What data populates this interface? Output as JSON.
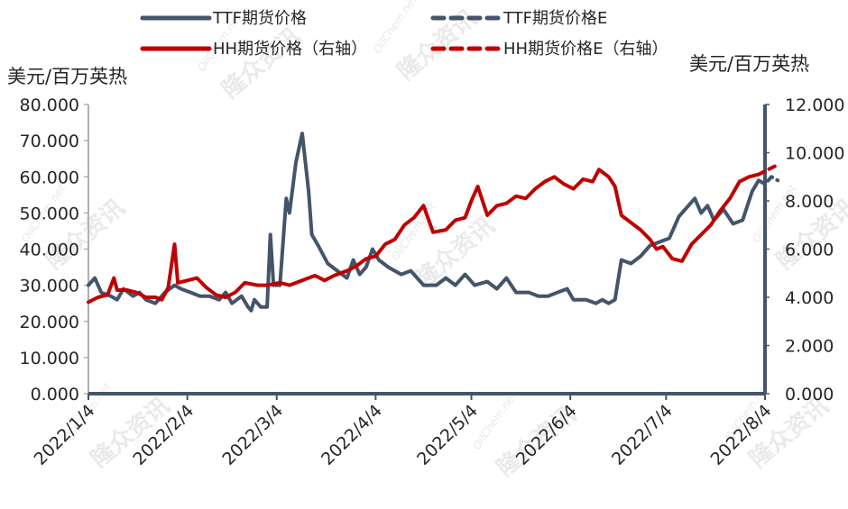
{
  "chart_data": {
    "type": "line",
    "y_left_unit": "美元/百万英热",
    "y_right_unit": "美元/百万英热",
    "ylim_left": [
      0,
      80
    ],
    "ylim_right": [
      0,
      12
    ],
    "yticks_left": [
      "0.000",
      "10.000",
      "20.000",
      "30.000",
      "40.000",
      "50.000",
      "60.000",
      "70.000",
      "80.000"
    ],
    "yticks_right": [
      "0.000",
      "2.000",
      "4.000",
      "6.000",
      "8.000",
      "10.000",
      "12.000"
    ],
    "xticks": [
      "2022/1/4",
      "2022/2/4",
      "2022/3/4",
      "2022/4/4",
      "2022/5/4",
      "2022/6/4",
      "2022/7/4",
      "2022/8/4"
    ],
    "x_range": [
      "2022-01-04",
      "2022-08-04"
    ],
    "grid": false,
    "legend_position": "top",
    "legend": [
      "TTF期货价格",
      "TTF期货价格E",
      "HH期货价格（右轴）",
      "HH期货价格E（右轴）"
    ],
    "series": [
      {
        "name": "TTF期货价格",
        "axis": "left",
        "color": "#44546a",
        "style": "solid",
        "points": [
          [
            "2022-01-04",
            30
          ],
          [
            "2022-01-06",
            32
          ],
          [
            "2022-01-08",
            28
          ],
          [
            "2022-01-11",
            27
          ],
          [
            "2022-01-13",
            26
          ],
          [
            "2022-01-15",
            29
          ],
          [
            "2022-01-18",
            27
          ],
          [
            "2022-01-20",
            28
          ],
          [
            "2022-01-22",
            26
          ],
          [
            "2022-01-25",
            25
          ],
          [
            "2022-01-28",
            28
          ],
          [
            "2022-01-31",
            30
          ],
          [
            "2022-02-02",
            29
          ],
          [
            "2022-02-05",
            28
          ],
          [
            "2022-02-08",
            27
          ],
          [
            "2022-02-11",
            27
          ],
          [
            "2022-02-14",
            26
          ],
          [
            "2022-02-16",
            28
          ],
          [
            "2022-02-18",
            25
          ],
          [
            "2022-02-21",
            27
          ],
          [
            "2022-02-23",
            24
          ],
          [
            "2022-02-24",
            23
          ],
          [
            "2022-02-25",
            26
          ],
          [
            "2022-02-27",
            24
          ],
          [
            "2022-03-01",
            24
          ],
          [
            "2022-03-02",
            44
          ],
          [
            "2022-03-03",
            30
          ],
          [
            "2022-03-05",
            30
          ],
          [
            "2022-03-07",
            54
          ],
          [
            "2022-03-08",
            50
          ],
          [
            "2022-03-10",
            64
          ],
          [
            "2022-03-12",
            72
          ],
          [
            "2022-03-14",
            56
          ],
          [
            "2022-03-15",
            44
          ],
          [
            "2022-03-17",
            41
          ],
          [
            "2022-03-20",
            36
          ],
          [
            "2022-03-23",
            34
          ],
          [
            "2022-03-26",
            32
          ],
          [
            "2022-03-28",
            37
          ],
          [
            "2022-03-30",
            33
          ],
          [
            "2022-04-01",
            35
          ],
          [
            "2022-04-03",
            40
          ],
          [
            "2022-04-05",
            37
          ],
          [
            "2022-04-08",
            35
          ],
          [
            "2022-04-12",
            33
          ],
          [
            "2022-04-15",
            34
          ],
          [
            "2022-04-19",
            30
          ],
          [
            "2022-04-23",
            30
          ],
          [
            "2022-04-26",
            32
          ],
          [
            "2022-04-29",
            30
          ],
          [
            "2022-05-02",
            33
          ],
          [
            "2022-05-05",
            30
          ],
          [
            "2022-05-09",
            31
          ],
          [
            "2022-05-12",
            29
          ],
          [
            "2022-05-15",
            32
          ],
          [
            "2022-05-18",
            28
          ],
          [
            "2022-05-22",
            28
          ],
          [
            "2022-05-25",
            27
          ],
          [
            "2022-05-28",
            27
          ],
          [
            "2022-05-31",
            28
          ],
          [
            "2022-06-03",
            29
          ],
          [
            "2022-06-05",
            26
          ],
          [
            "2022-06-09",
            26
          ],
          [
            "2022-06-12",
            25
          ],
          [
            "2022-06-14",
            26
          ],
          [
            "2022-06-16",
            25
          ],
          [
            "2022-06-18",
            26
          ],
          [
            "2022-06-20",
            37
          ],
          [
            "2022-06-23",
            36
          ],
          [
            "2022-06-26",
            38
          ],
          [
            "2022-06-29",
            41
          ],
          [
            "2022-07-02",
            42
          ],
          [
            "2022-07-05",
            43
          ],
          [
            "2022-07-08",
            49
          ],
          [
            "2022-07-11",
            52
          ],
          [
            "2022-07-13",
            54
          ],
          [
            "2022-07-15",
            50
          ],
          [
            "2022-07-17",
            52
          ],
          [
            "2022-07-19",
            48
          ],
          [
            "2022-07-22",
            51
          ],
          [
            "2022-07-25",
            47
          ],
          [
            "2022-07-28",
            48
          ],
          [
            "2022-07-31",
            56
          ],
          [
            "2022-08-02",
            59
          ]
        ]
      },
      {
        "name": "TTF期货价格E",
        "axis": "left",
        "color": "#44546a",
        "style": "dashed",
        "points": [
          [
            "2022-08-02",
            59
          ],
          [
            "2022-08-04",
            58
          ],
          [
            "2022-08-06",
            60
          ],
          [
            "2022-08-08",
            59
          ]
        ]
      },
      {
        "name": "HH期货价格（右轴）",
        "axis": "right",
        "color": "#c00000",
        "style": "solid",
        "points": [
          [
            "2022-01-04",
            3.8
          ],
          [
            "2022-01-07",
            4.0
          ],
          [
            "2022-01-10",
            4.1
          ],
          [
            "2022-01-12",
            4.8
          ],
          [
            "2022-01-13",
            4.3
          ],
          [
            "2022-01-16",
            4.3
          ],
          [
            "2022-01-19",
            4.2
          ],
          [
            "2022-01-22",
            4.0
          ],
          [
            "2022-01-25",
            4.0
          ],
          [
            "2022-01-27",
            3.9
          ],
          [
            "2022-01-29",
            4.4
          ],
          [
            "2022-01-31",
            6.2
          ],
          [
            "2022-02-01",
            4.6
          ],
          [
            "2022-02-04",
            4.7
          ],
          [
            "2022-02-07",
            4.8
          ],
          [
            "2022-02-10",
            4.4
          ],
          [
            "2022-02-13",
            4.1
          ],
          [
            "2022-02-16",
            4.0
          ],
          [
            "2022-02-19",
            4.2
          ],
          [
            "2022-02-22",
            4.6
          ],
          [
            "2022-02-26",
            4.5
          ],
          [
            "2022-03-01",
            4.5
          ],
          [
            "2022-03-05",
            4.6
          ],
          [
            "2022-03-08",
            4.5
          ],
          [
            "2022-03-12",
            4.7
          ],
          [
            "2022-03-16",
            4.9
          ],
          [
            "2022-03-19",
            4.7
          ],
          [
            "2022-03-22",
            4.9
          ],
          [
            "2022-03-26",
            5.1
          ],
          [
            "2022-03-29",
            5.3
          ],
          [
            "2022-04-01",
            5.6
          ],
          [
            "2022-04-04",
            5.7
          ],
          [
            "2022-04-07",
            6.2
          ],
          [
            "2022-04-10",
            6.4
          ],
          [
            "2022-04-13",
            7.0
          ],
          [
            "2022-04-16",
            7.3
          ],
          [
            "2022-04-19",
            7.8
          ],
          [
            "2022-04-22",
            6.7
          ],
          [
            "2022-04-26",
            6.8
          ],
          [
            "2022-04-29",
            7.2
          ],
          [
            "2022-05-02",
            7.3
          ],
          [
            "2022-05-04",
            8.0
          ],
          [
            "2022-05-06",
            8.6
          ],
          [
            "2022-05-09",
            7.4
          ],
          [
            "2022-05-12",
            7.8
          ],
          [
            "2022-05-15",
            7.9
          ],
          [
            "2022-05-18",
            8.2
          ],
          [
            "2022-05-21",
            8.1
          ],
          [
            "2022-05-24",
            8.5
          ],
          [
            "2022-05-27",
            8.8
          ],
          [
            "2022-05-30",
            9.0
          ],
          [
            "2022-06-02",
            8.7
          ],
          [
            "2022-06-05",
            8.5
          ],
          [
            "2022-06-08",
            8.9
          ],
          [
            "2022-06-11",
            8.8
          ],
          [
            "2022-06-13",
            9.3
          ],
          [
            "2022-06-16",
            9.0
          ],
          [
            "2022-06-18",
            8.6
          ],
          [
            "2022-06-20",
            7.4
          ],
          [
            "2022-06-23",
            7.1
          ],
          [
            "2022-06-26",
            6.8
          ],
          [
            "2022-06-29",
            6.4
          ],
          [
            "2022-07-01",
            6.0
          ],
          [
            "2022-07-03",
            6.1
          ],
          [
            "2022-07-06",
            5.6
          ],
          [
            "2022-07-09",
            5.5
          ],
          [
            "2022-07-12",
            6.2
          ],
          [
            "2022-07-15",
            6.6
          ],
          [
            "2022-07-18",
            7.0
          ],
          [
            "2022-07-21",
            7.6
          ],
          [
            "2022-07-24",
            8.1
          ],
          [
            "2022-07-27",
            8.8
          ],
          [
            "2022-07-30",
            9.0
          ],
          [
            "2022-08-02",
            9.1
          ]
        ]
      },
      {
        "name": "HH期货价格E（右轴）",
        "axis": "right",
        "color": "#c00000",
        "style": "dashed",
        "points": [
          [
            "2022-08-02",
            9.1
          ],
          [
            "2022-08-05",
            9.3
          ],
          [
            "2022-08-08",
            9.5
          ]
        ]
      }
    ]
  },
  "watermark": {
    "text": "隆众资讯",
    "sub": "OilChem.net"
  }
}
